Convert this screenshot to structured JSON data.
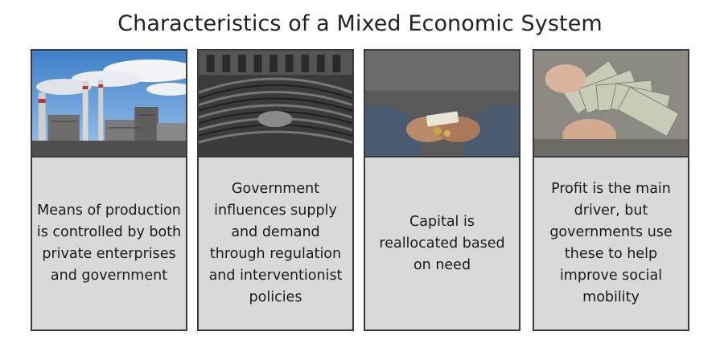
{
  "title": "Characteristics of a Mixed Economic System",
  "cards": [
    {
      "text": "Means of production is controlled by both private enterprises and government",
      "photo": "factory-smokestacks"
    },
    {
      "text": "Government influences supply and demand through regulation and interventionist policies",
      "photo": "parliament-chamber"
    },
    {
      "text": "Capital is reallocated based on need",
      "photo": "hands-holding-money"
    },
    {
      "text": "Profit is the main driver, but governments use these to help improve social mobility",
      "photo": "hands-counting-cash"
    }
  ]
}
